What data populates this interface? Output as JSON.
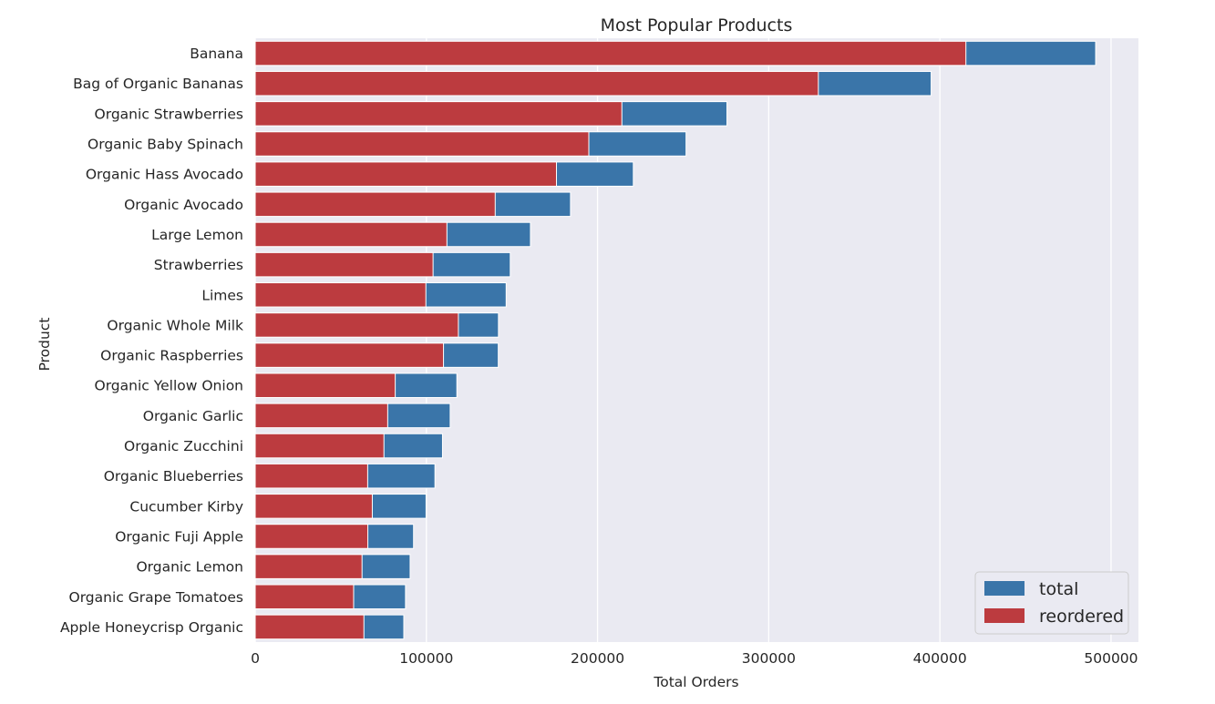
{
  "chart_data": {
    "type": "bar",
    "orientation": "horizontal",
    "stacking": "overlaid",
    "title": "Most Popular Products",
    "xlabel": "Total Orders",
    "ylabel": "Product",
    "xlim": [
      0,
      516000
    ],
    "xticks": [
      0,
      100000,
      200000,
      300000,
      400000,
      500000
    ],
    "xtick_labels": [
      "0",
      "100000",
      "200000",
      "300000",
      "400000",
      "500000"
    ],
    "grid": true,
    "legend_position": "bottom-right",
    "categories": [
      "Banana",
      "Bag of Organic Bananas",
      "Organic Strawberries",
      "Organic Baby Spinach",
      "Organic Hass Avocado",
      "Organic Avocado",
      "Large Lemon",
      "Strawberries",
      "Limes",
      "Organic Whole Milk",
      "Organic Raspberries",
      "Organic Yellow Onion",
      "Organic Garlic",
      "Organic Zucchini",
      "Organic Blueberries",
      "Cucumber Kirby",
      "Organic Fuji Apple",
      "Organic Lemon",
      "Organic Grape Tomatoes",
      "Apple Honeycrisp Organic"
    ],
    "series": [
      {
        "name": "total",
        "color": "#3a75a9",
        "values": [
          491000,
          394900,
          275600,
          251700,
          220900,
          184200,
          160800,
          149000,
          146600,
          142100,
          142000,
          117800,
          113900,
          109400,
          105000,
          99800,
          92500,
          90500,
          87800,
          86800
        ]
      },
      {
        "name": "reordered",
        "color": "#bc3b3f",
        "values": [
          415200,
          329000,
          214200,
          194900,
          176000,
          140200,
          112000,
          103900,
          99700,
          118700,
          110000,
          81800,
          77400,
          75200,
          65700,
          68400,
          65800,
          62400,
          57500,
          63500
        ]
      }
    ]
  }
}
